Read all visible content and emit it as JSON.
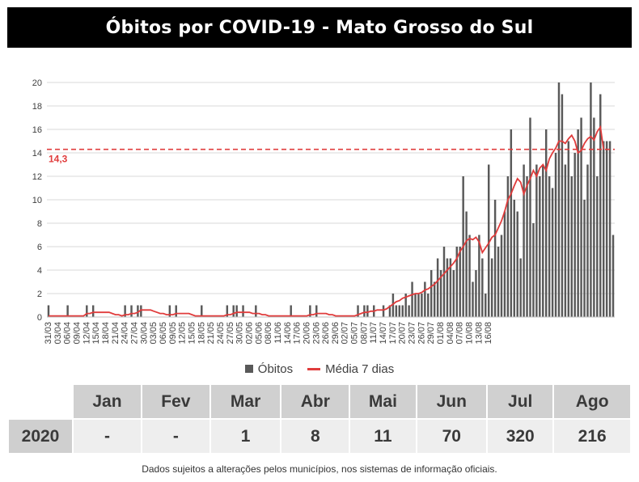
{
  "title": "Óbitos por COVID-19 - Mato Grosso do Sul",
  "chart_data": {
    "type": "bar",
    "title": "Óbitos por COVID-19 - Mato Grosso do Sul",
    "x_start": "2020-03-31",
    "x_tick_labels": [
      "31/03",
      "03/04",
      "06/04",
      "09/04",
      "12/04",
      "15/04",
      "18/04",
      "21/04",
      "24/04",
      "27/04",
      "30/04",
      "03/05",
      "06/05",
      "09/05",
      "12/05",
      "15/05",
      "18/05",
      "21/05",
      "24/05",
      "27/05",
      "30/05",
      "02/06",
      "05/06",
      "08/06",
      "11/06",
      "14/06",
      "17/06",
      "20/06",
      "23/06",
      "26/06",
      "29/06",
      "02/07",
      "05/07",
      "08/07",
      "11/07",
      "14/07",
      "17/07",
      "20/07",
      "23/07",
      "26/07",
      "29/07",
      "01/08",
      "04/08",
      "07/08",
      "10/08",
      "13/08",
      "16/08"
    ],
    "ylim": [
      0,
      20
    ],
    "y_ticks": [
      0,
      2,
      4,
      6,
      8,
      10,
      12,
      14,
      16,
      18,
      20
    ],
    "grid": true,
    "legend_position": "bottom",
    "series": [
      {
        "name": "Óbitos",
        "kind": "bar",
        "color": "#595959",
        "values": [
          1,
          0,
          0,
          0,
          0,
          0,
          1,
          0,
          0,
          0,
          0,
          0,
          1,
          0,
          1,
          0,
          0,
          0,
          0,
          0,
          0,
          0,
          0,
          0,
          1,
          0,
          1,
          0,
          1,
          1,
          0,
          0,
          0,
          0,
          0,
          0,
          0,
          0,
          1,
          0,
          1,
          0,
          0,
          0,
          0,
          0,
          0,
          0,
          1,
          0,
          0,
          0,
          0,
          0,
          0,
          0,
          1,
          0,
          1,
          1,
          0,
          1,
          0,
          0,
          0,
          1,
          0,
          0,
          0,
          0,
          0,
          0,
          0,
          0,
          0,
          0,
          1,
          0,
          0,
          0,
          0,
          0,
          1,
          0,
          1,
          0,
          0,
          0,
          0,
          0,
          0,
          0,
          0,
          0,
          0,
          0,
          0,
          1,
          0,
          1,
          1,
          0,
          1,
          0,
          0,
          1,
          0,
          1,
          2,
          1,
          1,
          1,
          2,
          1,
          3,
          2,
          2,
          2,
          3,
          2,
          4,
          3,
          5,
          4,
          6,
          5,
          5,
          4,
          6,
          6,
          12,
          9,
          7,
          3,
          4,
          7,
          5,
          2,
          13,
          5,
          10,
          6,
          7,
          9,
          12,
          16,
          10,
          9,
          5,
          13,
          12,
          17,
          8,
          13,
          12,
          13,
          16,
          12,
          11,
          14,
          20,
          19,
          13,
          15,
          12,
          14,
          16,
          17,
          10,
          13,
          20,
          17,
          12,
          19,
          15,
          15,
          15,
          7
        ]
      },
      {
        "name": "Média 7 dias",
        "kind": "line",
        "color": "#e03c3c",
        "values": [
          0.1,
          0.1,
          0.1,
          0.1,
          0.1,
          0.1,
          0.1,
          0.1,
          0.1,
          0.1,
          0.1,
          0.1,
          0.3,
          0.3,
          0.4,
          0.4,
          0.4,
          0.4,
          0.4,
          0.4,
          0.3,
          0.2,
          0.2,
          0.1,
          0.2,
          0.2,
          0.3,
          0.3,
          0.4,
          0.6,
          0.6,
          0.6,
          0.6,
          0.5,
          0.4,
          0.3,
          0.3,
          0.2,
          0.2,
          0.2,
          0.3,
          0.3,
          0.3,
          0.3,
          0.3,
          0.2,
          0.1,
          0.1,
          0.1,
          0.1,
          0.1,
          0.1,
          0.1,
          0.1,
          0.1,
          0.1,
          0.2,
          0.2,
          0.3,
          0.4,
          0.4,
          0.4,
          0.4,
          0.4,
          0.3,
          0.3,
          0.3,
          0.2,
          0.2,
          0.1,
          0.1,
          0.1,
          0.1,
          0.1,
          0.1,
          0.1,
          0.1,
          0.1,
          0.1,
          0.1,
          0.1,
          0.1,
          0.2,
          0.2,
          0.3,
          0.3,
          0.3,
          0.3,
          0.2,
          0.2,
          0.1,
          0.1,
          0.1,
          0.1,
          0.1,
          0.1,
          0.1,
          0.2,
          0.3,
          0.4,
          0.4,
          0.5,
          0.5,
          0.6,
          0.6,
          0.6,
          0.7,
          0.9,
          1.1,
          1.3,
          1.4,
          1.6,
          1.7,
          1.8,
          1.9,
          2.0,
          2.0,
          2.1,
          2.3,
          2.4,
          2.6,
          2.8,
          3.1,
          3.4,
          3.7,
          4.0,
          4.3,
          4.6,
          5.0,
          5.6,
          6.0,
          6.5,
          6.7,
          6.6,
          6.8,
          6.4,
          5.5,
          5.9,
          6.3,
          6.8,
          7.0,
          7.6,
          8.2,
          9.0,
          10.0,
          10.5,
          11.2,
          11.8,
          11.5,
          10.5,
          11.2,
          11.8,
          12.5,
          12.0,
          12.7,
          13.0,
          12.5,
          13.5,
          14.0,
          14.4,
          15.0,
          15.0,
          14.8,
          15.2,
          15.5,
          15.0,
          14.0,
          14.2,
          14.8,
          15.2,
          15.4,
          15.1,
          15.8,
          16.2,
          14.3
        ]
      }
    ],
    "reference_line": {
      "value": 14.3,
      "label": "14,3",
      "color": "#e03c3c",
      "style": "dashed"
    }
  },
  "legend": {
    "bars_label": "Óbitos",
    "line_label": "Média 7 dias"
  },
  "summary_table": {
    "months": [
      "Jan",
      "Fev",
      "Mar",
      "Abr",
      "Mai",
      "Jun",
      "Jul",
      "Ago"
    ],
    "year": "2020",
    "values": [
      "-",
      "-",
      "1",
      "8",
      "11",
      "70",
      "320",
      "216"
    ]
  },
  "footnote": "Dados sujeitos a alterações pelos municípios, nos sistemas de informação oficiais."
}
